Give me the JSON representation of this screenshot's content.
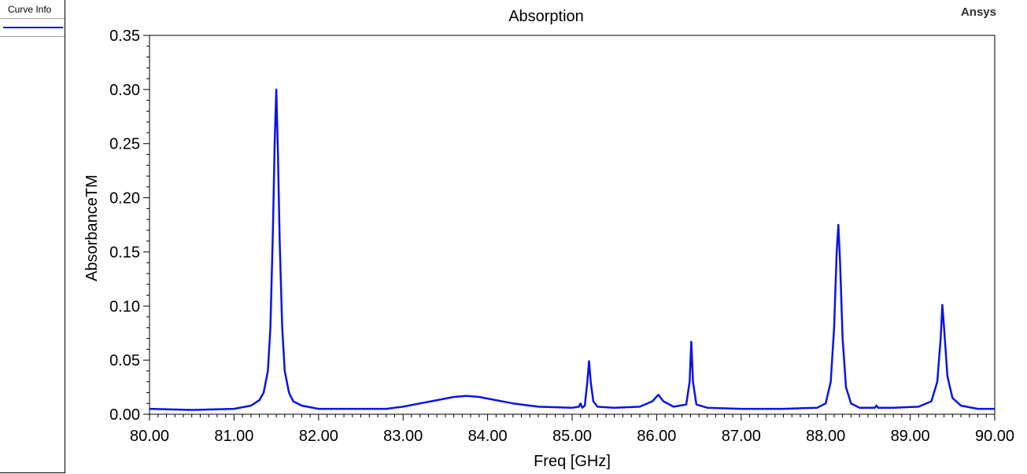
{
  "legend": {
    "header": "Curve Info",
    "swatch_color": "#1010e0"
  },
  "brand": "Ansys",
  "chart_data": {
    "type": "line",
    "title": "Absorption",
    "xlabel": "Freq [GHz]",
    "ylabel": "AbsorbanceTM",
    "xlim": [
      80.0,
      90.0
    ],
    "ylim": [
      0.0,
      0.35
    ],
    "xticks": [
      "80.00",
      "81.00",
      "82.00",
      "83.00",
      "84.00",
      "85.00",
      "86.00",
      "87.00",
      "88.00",
      "89.00",
      "90.00"
    ],
    "yticks": [
      "0.00",
      "0.05",
      "0.10",
      "0.15",
      "0.20",
      "0.25",
      "0.30",
      "0.35"
    ],
    "line_color": "#0a14e6",
    "grid": false,
    "series": [
      {
        "x": [
          80.0,
          80.5,
          81.0,
          81.2,
          81.3,
          81.35,
          81.4,
          81.43,
          81.46,
          81.48,
          81.5,
          81.52,
          81.54,
          81.57,
          81.6,
          81.65,
          81.7,
          81.8,
          82.0,
          82.5,
          82.8,
          83.0,
          83.2,
          83.4,
          83.6,
          83.75,
          83.9,
          84.1,
          84.3,
          84.6,
          85.0,
          85.08,
          85.1,
          85.12,
          85.15,
          85.18,
          85.2,
          85.22,
          85.25,
          85.3,
          85.5,
          85.8,
          85.95,
          86.02,
          86.08,
          86.2,
          86.35,
          86.39,
          86.41,
          86.43,
          86.47,
          86.6,
          87.0,
          87.5,
          87.9,
          88.0,
          88.06,
          88.1,
          88.13,
          88.15,
          88.17,
          88.2,
          88.24,
          88.3,
          88.4,
          88.58,
          88.6,
          88.62,
          88.8,
          89.1,
          89.25,
          89.32,
          89.36,
          89.38,
          89.4,
          89.44,
          89.5,
          89.6,
          89.8,
          90.0
        ],
        "y": [
          0.005,
          0.004,
          0.005,
          0.008,
          0.013,
          0.02,
          0.04,
          0.08,
          0.17,
          0.25,
          0.3,
          0.24,
          0.16,
          0.08,
          0.04,
          0.02,
          0.012,
          0.008,
          0.005,
          0.005,
          0.005,
          0.007,
          0.01,
          0.013,
          0.016,
          0.017,
          0.016,
          0.013,
          0.01,
          0.007,
          0.006,
          0.007,
          0.01,
          0.006,
          0.008,
          0.03,
          0.049,
          0.03,
          0.012,
          0.007,
          0.006,
          0.007,
          0.012,
          0.018,
          0.012,
          0.007,
          0.009,
          0.03,
          0.067,
          0.03,
          0.009,
          0.006,
          0.005,
          0.005,
          0.006,
          0.01,
          0.03,
          0.08,
          0.15,
          0.175,
          0.14,
          0.07,
          0.025,
          0.01,
          0.006,
          0.006,
          0.008,
          0.006,
          0.006,
          0.007,
          0.012,
          0.03,
          0.07,
          0.101,
          0.08,
          0.035,
          0.015,
          0.008,
          0.005,
          0.005
        ]
      }
    ]
  }
}
